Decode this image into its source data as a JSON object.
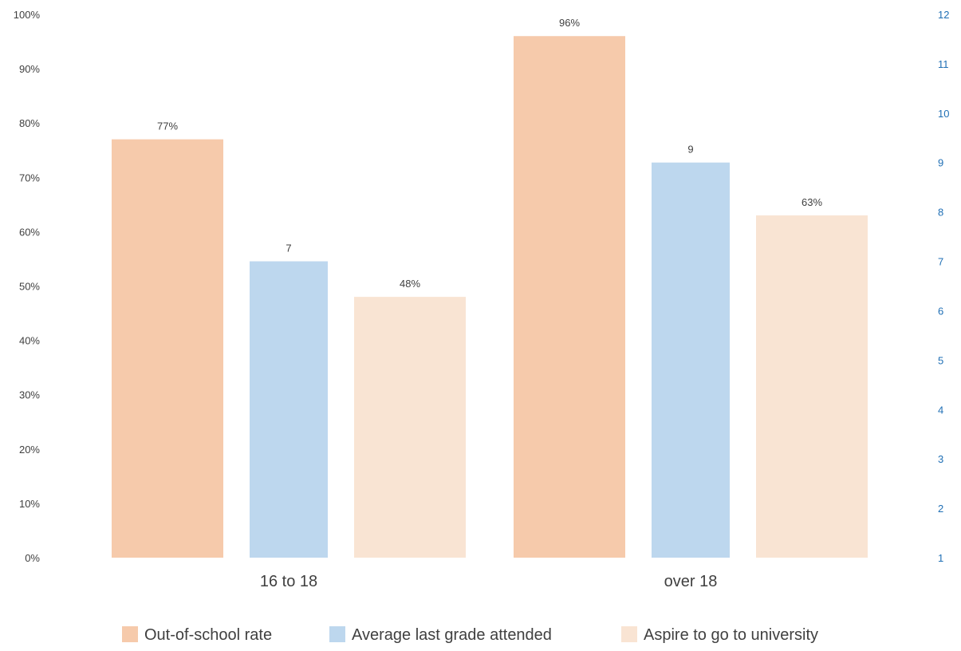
{
  "chart_data": {
    "type": "bar",
    "categories": [
      "16 to 18",
      "over 18"
    ],
    "series": [
      {
        "name": "Out-of-school rate",
        "axis": "left",
        "values": [
          0.77,
          0.96
        ],
        "labels": [
          "77%",
          "96%"
        ],
        "color": "#f6caab"
      },
      {
        "name": "Average last grade attended",
        "axis": "right",
        "values": [
          7,
          9
        ],
        "labels": [
          "7",
          "9"
        ],
        "color": "#bdd7ee"
      },
      {
        "name": "Aspire to go to university",
        "axis": "left",
        "values": [
          0.48,
          0.63
        ],
        "labels": [
          "48%",
          "63%"
        ],
        "color": "#f9e4d3"
      }
    ],
    "y_left": {
      "min": 0,
      "max": 1,
      "ticks": [
        "0%",
        "10%",
        "20%",
        "30%",
        "40%",
        "50%",
        "60%",
        "70%",
        "80%",
        "90%",
        "100%"
      ]
    },
    "y_right": {
      "min": 1,
      "max": 12,
      "ticks": [
        "1",
        "2",
        "3",
        "4",
        "5",
        "6",
        "7",
        "8",
        "9",
        "10",
        "11",
        "12"
      ],
      "color": "#1f6fb5"
    },
    "grid": false,
    "legend_position": "bottom"
  }
}
